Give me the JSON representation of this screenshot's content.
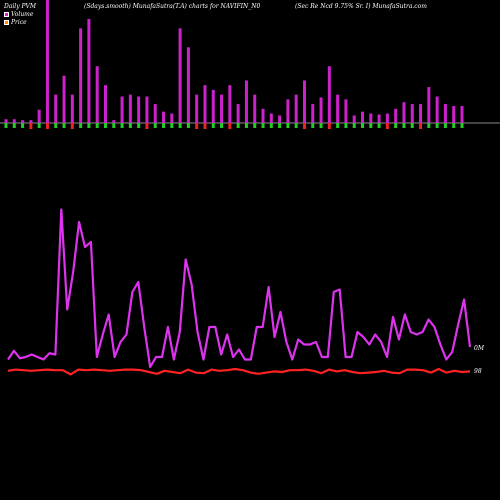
{
  "header": {
    "left": "Daily PVM",
    "center": "(Sdays.smooth) MunafaSutra(T.A) charts for NAVIFIN_N0",
    "right": "(Sec Re  Ncd 9.75% Sr. I) MunafaSutra.com"
  },
  "legend": {
    "volume_label": "Volume",
    "price_label": "Price",
    "volume_color": "#cc22cc",
    "price_color": "#ff8800"
  },
  "side_labels": {
    "volume": "0M",
    "price": "98"
  },
  "colors": {
    "background": "#000000",
    "volume_bar": "#cc22cc",
    "up_tick": "#22cc22",
    "down_tick": "#ee2222",
    "volume_line": "#dd33ee",
    "price_line": "#ff2222",
    "baseline": "#888888"
  },
  "chart_data": {
    "type": "bar",
    "volume_bars": [
      4,
      4,
      3,
      3,
      14,
      130,
      30,
      50,
      30,
      100,
      110,
      60,
      40,
      3,
      28,
      30,
      28,
      28,
      20,
      12,
      10,
      100,
      80,
      30,
      40,
      35,
      30,
      40,
      20,
      45,
      30,
      15,
      10,
      8,
      25,
      30,
      45,
      20,
      27,
      60,
      30,
      25,
      8,
      12,
      10,
      9,
      10,
      15,
      22,
      20,
      20,
      38,
      28,
      20,
      18,
      18
    ],
    "up_down": [
      "g",
      "g",
      "g",
      "r",
      "g",
      "r",
      "g",
      "g",
      "r",
      "g",
      "g",
      "g",
      "g",
      "g",
      "g",
      "g",
      "g",
      "r",
      "g",
      "g",
      "g",
      "g",
      "g",
      "r",
      "r",
      "g",
      "g",
      "r",
      "g",
      "g",
      "g",
      "g",
      "g",
      "g",
      "g",
      "g",
      "r",
      "g",
      "g",
      "r",
      "g",
      "g",
      "g",
      "g",
      "g",
      "g",
      "r",
      "g",
      "g",
      "g",
      "r",
      "g",
      "g",
      "g",
      "g",
      "g"
    ],
    "volume_line": [
      0.5,
      0.85,
      0.55,
      0.6,
      0.7,
      0.6,
      0.5,
      0.75,
      0.7,
      6.5,
      2.5,
      4,
      6,
      5,
      5.2,
      0.6,
      1.5,
      2.3,
      0.6,
      1.2,
      1.5,
      3.2,
      3.6,
      1.8,
      0.2,
      0.6,
      0.6,
      1.8,
      0.5,
      1.6,
      4.5,
      3.5,
      1.6,
      0.5,
      1.8,
      1.8,
      0.7,
      1.5,
      0.6,
      0.9,
      0.5,
      0.5,
      1.8,
      1.8,
      3.4,
      1.4,
      2.4,
      1.2,
      0.5,
      1.3,
      1.1,
      1.1,
      1.2,
      0.6,
      0.6,
      3.2,
      3.3,
      0.6,
      0.6,
      1.6,
      1.4,
      1.1,
      1.5,
      1.2,
      0.6,
      2.2,
      1.3,
      2.3,
      1.6,
      1.5,
      1.6,
      2.1,
      1.8,
      1.1,
      0.5,
      0.8,
      1.9,
      2.9,
      1.0
    ],
    "price_line": [
      98.2,
      98.4,
      98.3,
      98.2,
      98.3,
      98.4,
      98.3,
      98.3,
      97.6,
      98.4,
      98.3,
      98.4,
      98.3,
      98.2,
      98.3,
      98.4,
      98.4,
      98.3,
      98.0,
      97.7,
      98.2,
      98.0,
      97.8,
      98.4,
      97.9,
      97.8,
      98.4,
      98.2,
      98.3,
      98.5,
      98.3,
      97.9,
      97.7,
      97.9,
      98.1,
      98.0,
      98.3,
      98.3,
      98.4,
      98.2,
      97.8,
      98.4,
      98.1,
      98.3,
      98.0,
      97.8,
      97.9,
      98.0,
      98.2,
      97.9,
      97.8,
      98.4,
      98.4,
      98.3,
      97.9,
      98.5,
      97.9,
      98.2,
      98.0,
      98.1
    ],
    "title": "",
    "xlabel": "",
    "ylabel": "",
    "grid": false,
    "legend_position": "top-left"
  }
}
